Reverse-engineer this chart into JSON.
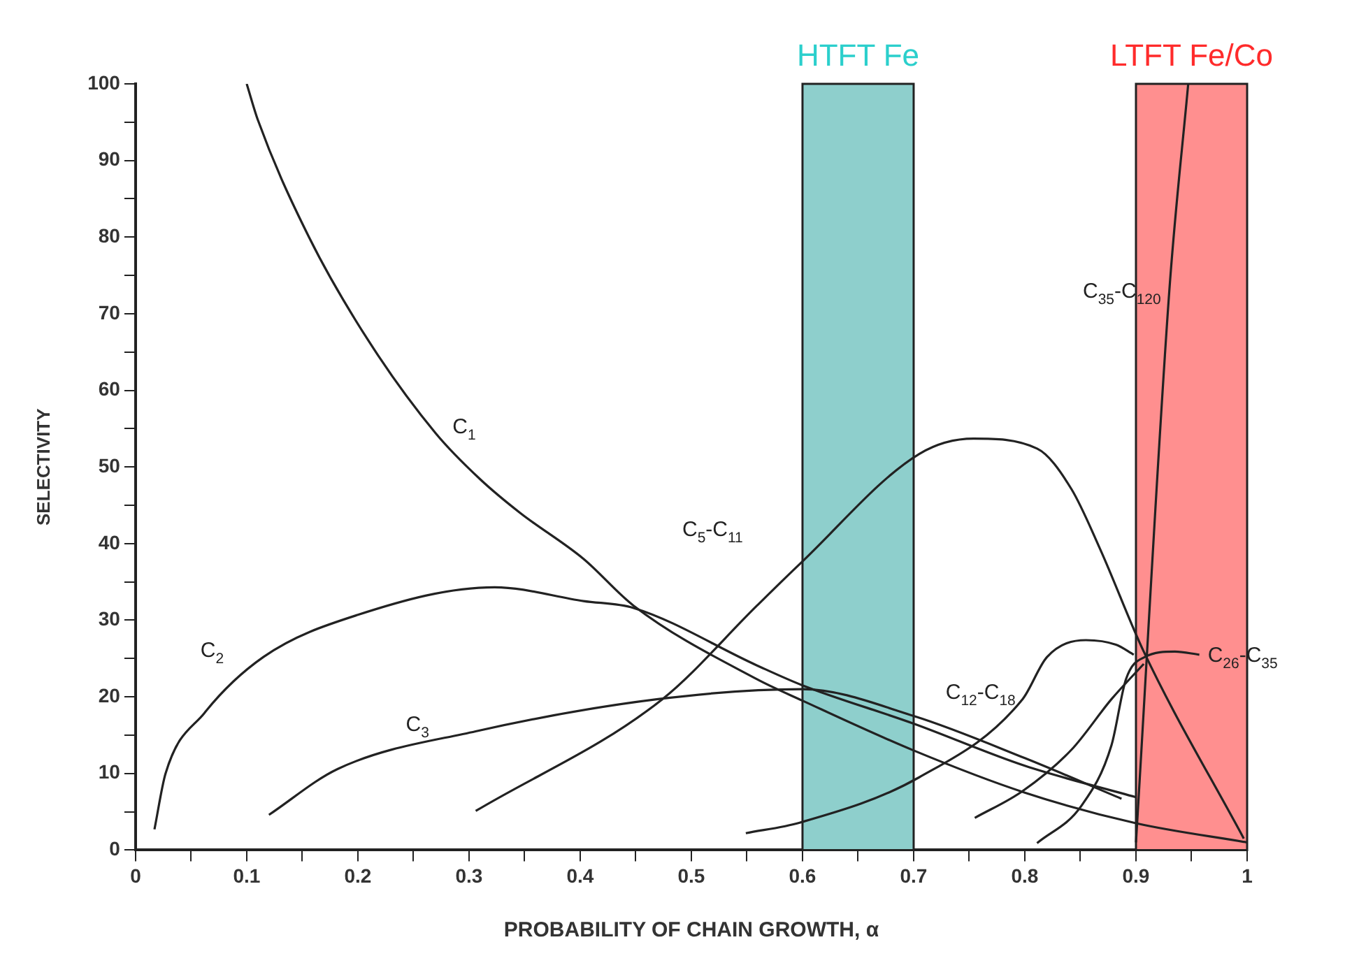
{
  "chart_data": {
    "type": "line",
    "xlabel": "PROBABILITY OF CHAIN GROWTH, α",
    "ylabel": "SELECTIVITY",
    "xlim": [
      0,
      1
    ],
    "ylim": [
      0,
      100
    ],
    "xticks": [
      0,
      {
        "value": 0.05,
        "label": null
      },
      0.1,
      {
        "value": 0.15,
        "label": null
      },
      0.2,
      {
        "value": 0.25,
        "label": null
      },
      0.3,
      {
        "value": 0.35,
        "label": null
      },
      0.4,
      {
        "value": 0.45,
        "label": null
      },
      0.5,
      {
        "value": 0.55,
        "label": null
      },
      0.6,
      {
        "value": 0.65,
        "label": null
      },
      0.7,
      {
        "value": 0.75,
        "label": null
      },
      0.8,
      {
        "value": 0.85,
        "label": null
      },
      0.9,
      {
        "value": 0.95,
        "label": null
      },
      1
    ],
    "yticks": [
      0,
      {
        "value": 5,
        "label": null
      },
      10,
      {
        "value": 15,
        "label": null
      },
      20,
      {
        "value": 25,
        "label": null
      },
      30,
      {
        "value": 35,
        "label": null
      },
      40,
      {
        "value": 45,
        "label": null
      },
      50,
      {
        "value": 55,
        "label": null
      },
      60,
      {
        "value": 65,
        "label": null
      },
      70,
      {
        "value": 75,
        "label": null
      },
      80,
      {
        "value": 85,
        "label": null
      },
      90,
      {
        "value": 95,
        "label": null
      },
      100
    ],
    "grid": false,
    "legend": false,
    "marker": "none",
    "line_style": "solid",
    "bands": [
      {
        "axis": "x",
        "from": 0.6,
        "to": 0.7,
        "label": "HTFT Fe",
        "color": "#8ecfcc"
      },
      {
        "axis": "x",
        "from": 0.9,
        "to": 1.0,
        "label": "LTFT Fe/Co",
        "color": "#ff8f8f"
      }
    ],
    "series": [
      {
        "name": "C$_{1}$",
        "color": "#222222",
        "x": [
          0.1,
          0.11,
          0.156,
          0.209,
          0.27,
          0.31,
          0.346,
          0.403,
          0.448,
          0.559,
          0.6,
          0.7,
          0.8,
          0.9,
          1.0
        ],
        "values": [
          100,
          95.3,
          80,
          66.6,
          54.4,
          48.4,
          44,
          38,
          31.9,
          22.3,
          19.5,
          13,
          7.5,
          3.5,
          1
        ]
      },
      {
        "name": "C$_{2}$",
        "color": "#222222",
        "x": [
          0.017,
          0.027,
          0.062,
          0.115,
          0.2,
          0.323,
          0.403,
          0.448,
          0.559,
          0.6,
          0.7,
          0.8,
          0.9
        ],
        "values": [
          2.7,
          10,
          17.9,
          25.2,
          30.7,
          34.3,
          32.5,
          31.6,
          24.1,
          21.5,
          16.5,
          11,
          6.9
        ]
      },
      {
        "name": "C$_{3}$",
        "color": "#222222",
        "x": [
          0.12,
          0.182,
          0.306,
          0.47,
          0.6,
          0.7,
          0.8,
          0.887
        ],
        "values": [
          4.6,
          10.6,
          15.5,
          19.7,
          21,
          17.5,
          12,
          6.7
        ]
      },
      {
        "name": "C$_{5}$-C$_{11}$",
        "color": "#222222",
        "x": [
          0.306,
          0.474,
          0.559,
          0.598,
          0.705,
          0.754,
          0.811,
          0.842,
          0.868,
          0.907,
          0.997
        ],
        "values": [
          5.1,
          19.7,
          31.9,
          37.4,
          51.7,
          53.7,
          52.4,
          47.1,
          39.2,
          25.9,
          1.5
        ]
      },
      {
        "name": "C$_{12}$-C$_{18}$",
        "color": "#222222",
        "x": [
          0.549,
          0.598,
          0.705,
          0.798,
          0.82,
          0.855,
          0.882,
          0.898
        ],
        "values": [
          2.2,
          3.6,
          9.5,
          19.7,
          25.2,
          27.4,
          26.8,
          25.5
        ]
      },
      {
        "color": "#222222",
        "x": [
          0.755,
          0.798,
          0.842,
          0.878,
          0.907
        ],
        "values": [
          4.2,
          7.7,
          13.1,
          19.7,
          24.3
        ]
      },
      {
        "name": "C$_{26}$-C$_{35}$",
        "color": "#222222",
        "x": [
          0.811,
          0.851,
          0.878,
          0.891,
          0.908,
          0.935,
          0.957
        ],
        "values": [
          0.9,
          5.8,
          13.7,
          22.3,
          25.2,
          25.9,
          25.5
        ]
      },
      {
        "name": "C$_{35}$-C$_{120}$",
        "color": "#222222",
        "x": [
          0.9,
          0.93,
          0.947
        ],
        "values": [
          1,
          73,
          100
        ]
      }
    ]
  }
}
